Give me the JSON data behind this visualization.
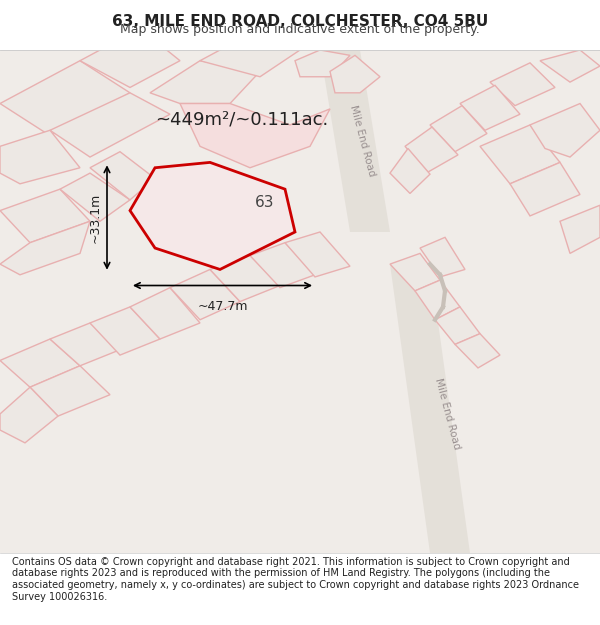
{
  "title": "63, MILE END ROAD, COLCHESTER, CO4 5BU",
  "subtitle": "Map shows position and indicative extent of the property.",
  "footer": "Contains OS data © Crown copyright and database right 2021. This information is subject to Crown copyright and database rights 2023 and is reproduced with the permission of HM Land Registry. The polygons (including the associated geometry, namely x, y co-ordinates) are subject to Crown copyright and database rights 2023 Ordnance Survey 100026316.",
  "bg_color": "#f0ece8",
  "map_bg": "#f5f2ef",
  "road_color": "#e8e0d8",
  "plot_fill": "#f5e8e8",
  "plot_edge": "#cc0000",
  "other_plot_fill": "#ede8e4",
  "other_plot_edge": "#e8b0b0",
  "highlight_fill": "#f5c8c8",
  "road_label": "Mile End Road",
  "plot_label": "63",
  "area_label": "~449m²/~0.111ac.",
  "dim_width": "~47.7m",
  "dim_height": "~33.1m",
  "title_fontsize": 11,
  "subtitle_fontsize": 9,
  "footer_fontsize": 7
}
